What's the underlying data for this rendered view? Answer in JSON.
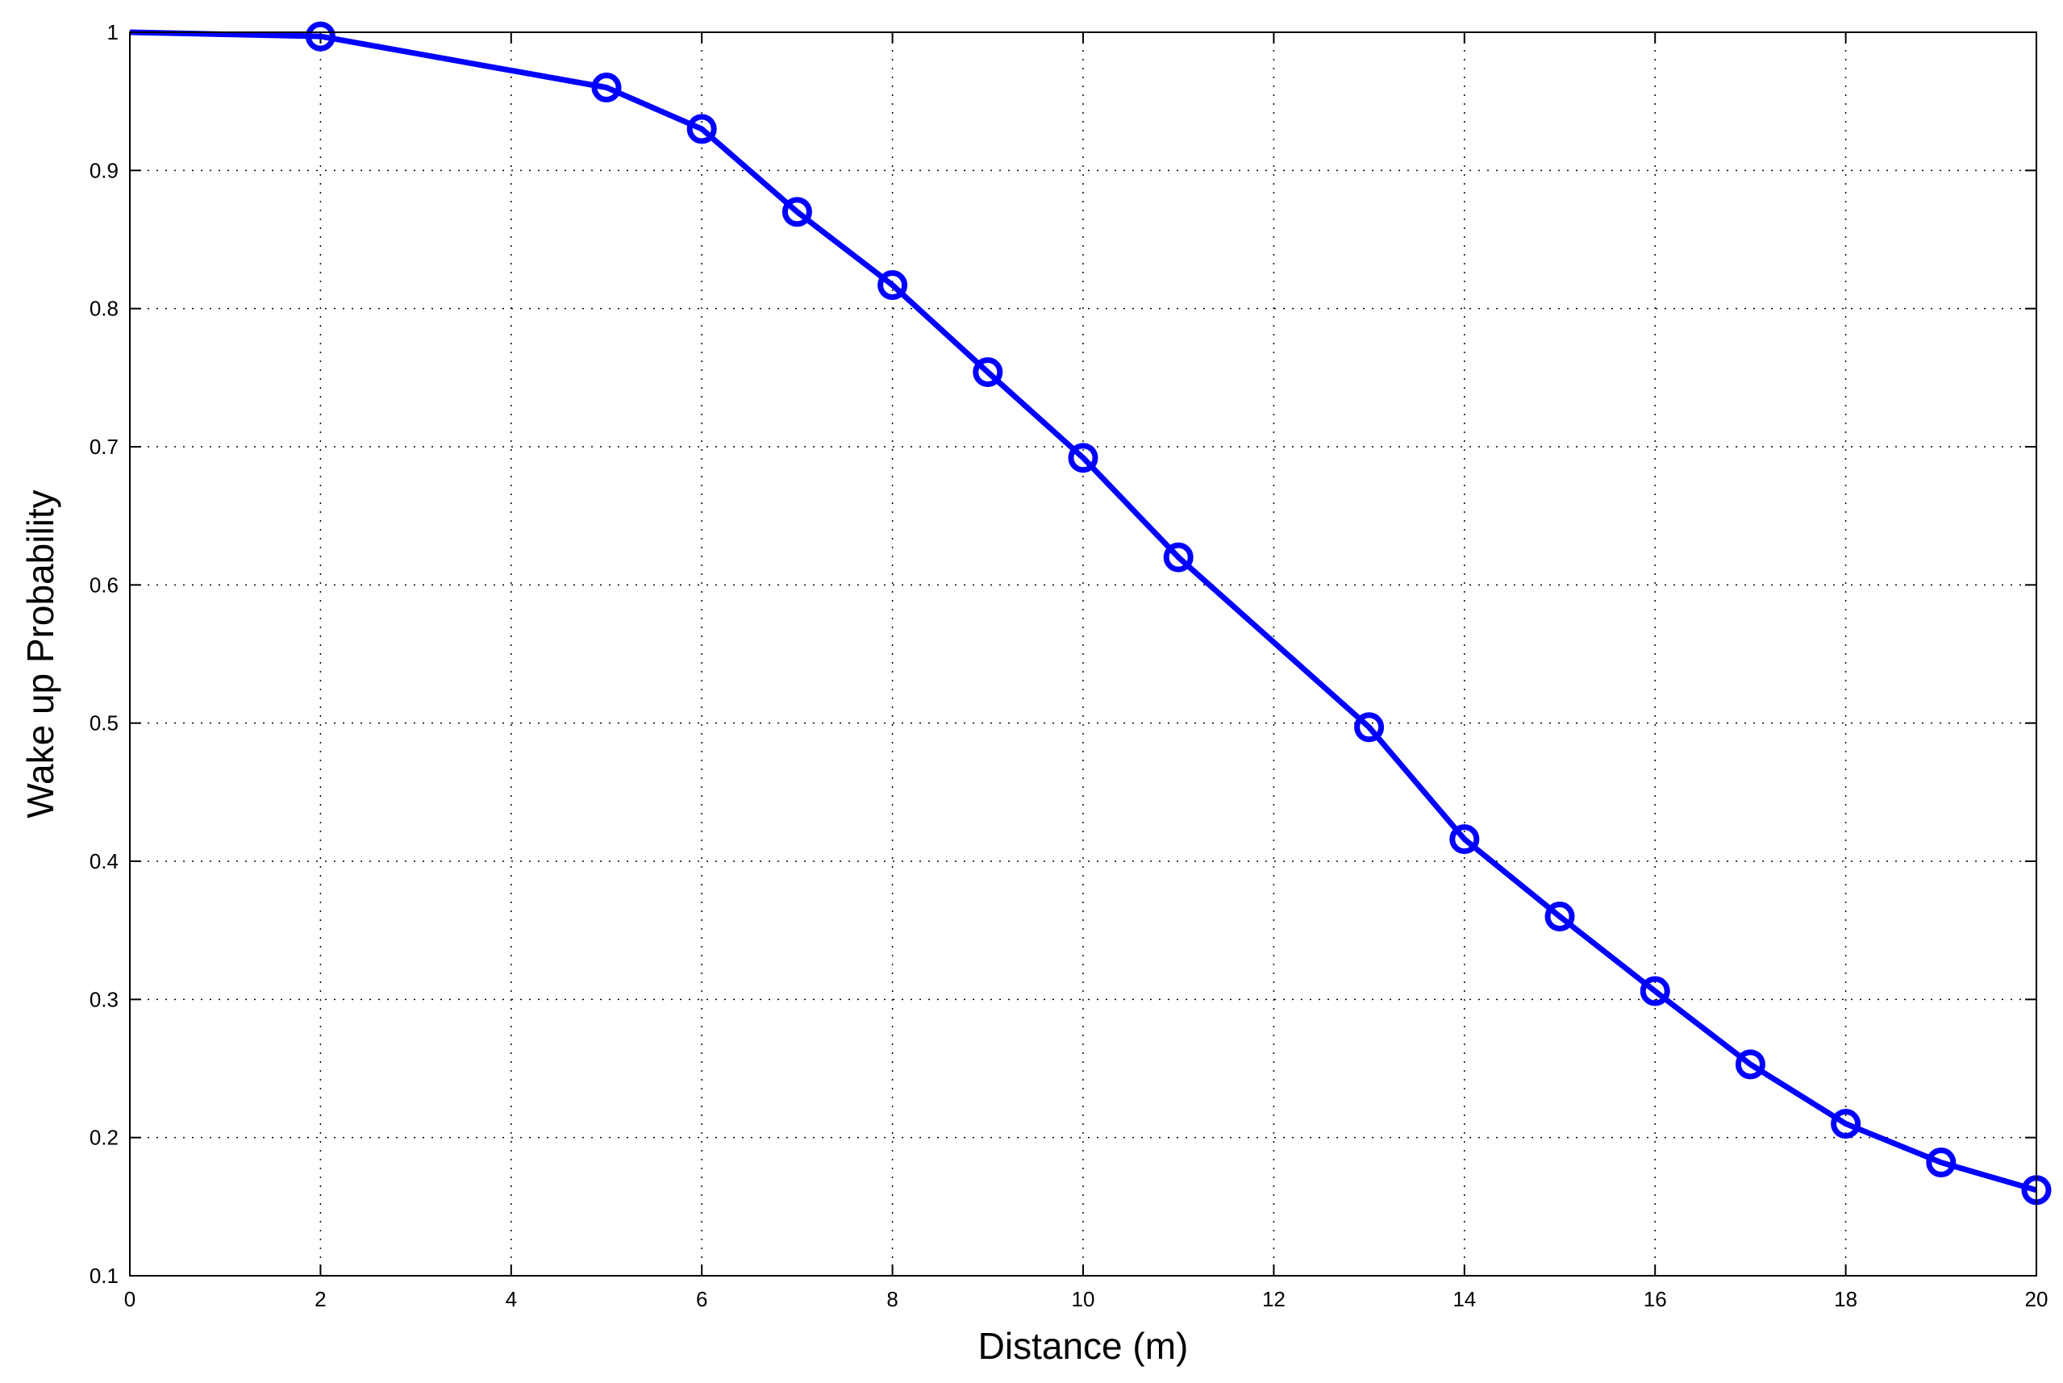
{
  "chart_data": {
    "type": "line",
    "title": "",
    "xlabel": "Distance (m)",
    "ylabel": "Wake up Probability",
    "xlim": [
      0,
      20
    ],
    "ylim": [
      0.1,
      1
    ],
    "xticks": [
      "0",
      "2",
      "4",
      "6",
      "8",
      "10",
      "12",
      "14",
      "16",
      "18",
      "20"
    ],
    "yticks": [
      "0.1",
      "0.2",
      "0.3",
      "0.4",
      "0.5",
      "0.6",
      "0.7",
      "0.8",
      "0.9",
      "1"
    ],
    "grid": true,
    "grid_style": "dotted",
    "series": [
      {
        "color": "#0000ff",
        "marker": "circle",
        "x": [
          0,
          2,
          5,
          6,
          7,
          8,
          9,
          10,
          11,
          13,
          14,
          15,
          16,
          17,
          18,
          19,
          20
        ],
        "y": [
          1.0,
          0.997,
          0.96,
          0.93,
          0.87,
          0.817,
          0.754,
          0.692,
          0.62,
          0.497,
          0.416,
          0.36,
          0.306,
          0.253,
          0.21,
          0.182,
          0.162
        ],
        "markers": [
          false,
          true,
          true,
          true,
          true,
          true,
          true,
          true,
          true,
          true,
          true,
          true,
          true,
          true,
          true,
          true,
          true
        ]
      }
    ]
  }
}
